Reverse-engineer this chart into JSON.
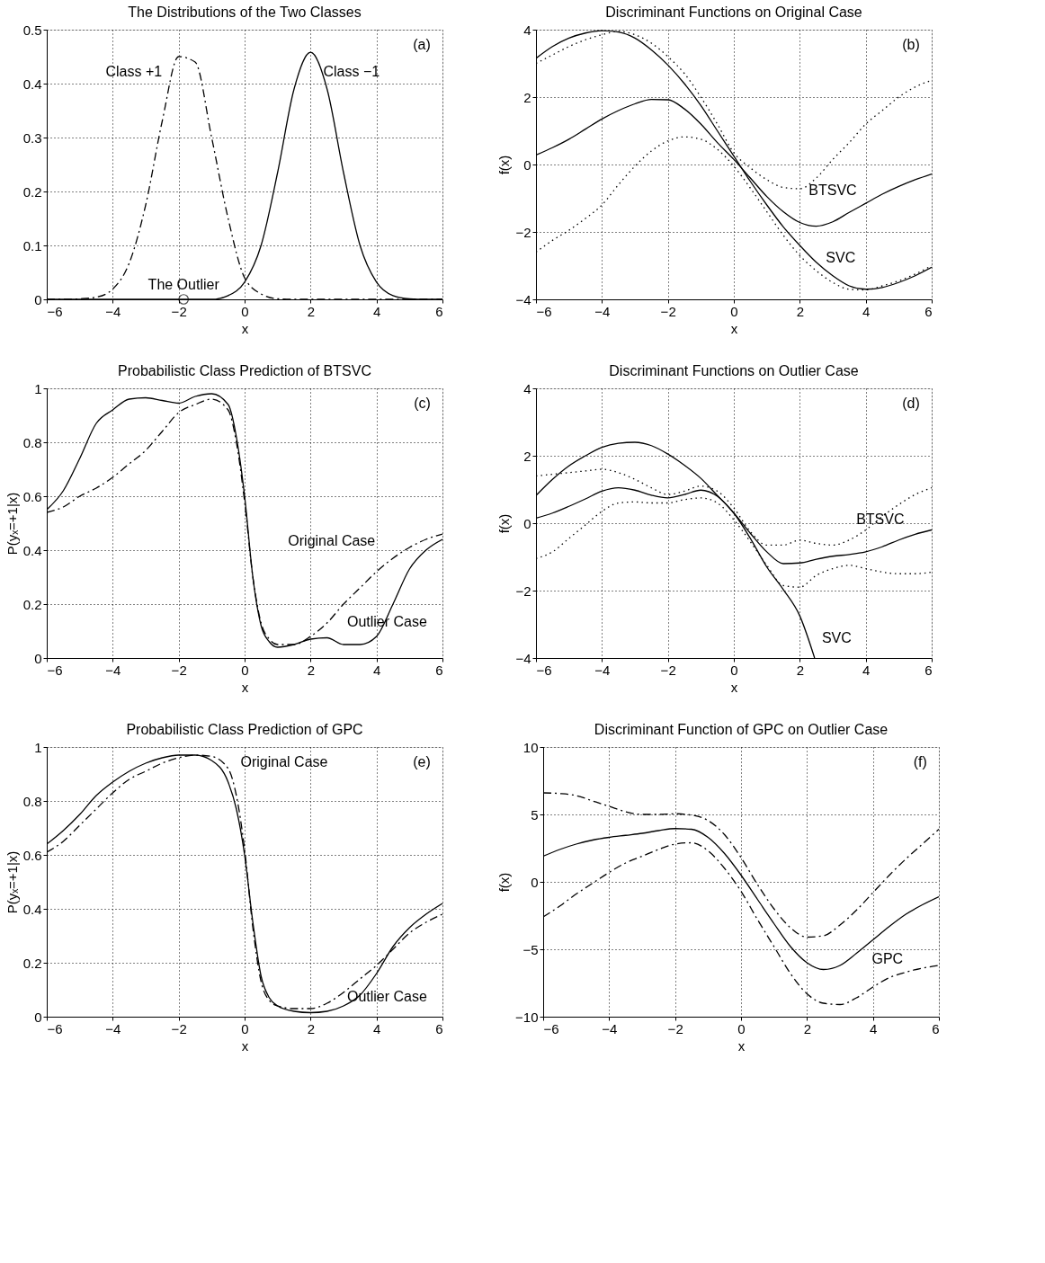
{
  "chart_data": [
    {
      "type": "line",
      "title": "The Distributions of the Two Classes",
      "xlabel": "x",
      "xlim": [
        -6,
        6
      ],
      "ylim": [
        0,
        0.5
      ],
      "xticks": [
        -6,
        -4,
        -2,
        0,
        2,
        4,
        6
      ],
      "yticks": [
        0,
        0.1,
        0.2,
        0.3,
        0.4,
        0.5
      ],
      "grid": true,
      "x": [
        -6,
        -5.5,
        -5,
        -4.5,
        -4,
        -3.5,
        -3,
        -2.5,
        -2,
        -1.5,
        -1,
        -0.5,
        0,
        0.5,
        1,
        1.5,
        2,
        2.5,
        3,
        3.5,
        4,
        4.5,
        5,
        5.5,
        6
      ],
      "series": [
        {
          "color": "#000000",
          "line_style": "dashed",
          "values": [
            0,
            0,
            0.001,
            0.004,
            0.019,
            0.067,
            0.175,
            0.33,
            0.45,
            0.44,
            0.3,
            0.15,
            0.04,
            0.01,
            0.001,
            0,
            0,
            0,
            0,
            0,
            0,
            0,
            0,
            0,
            0
          ]
        },
        {
          "color": "#000000",
          "line_style": "solid",
          "values": [
            0,
            0,
            0,
            0,
            0,
            0,
            0,
            0,
            0,
            0,
            0,
            0.007,
            0.032,
            0.1,
            0.235,
            0.39,
            0.458,
            0.39,
            0.235,
            0.1,
            0.032,
            0.007,
            0.001,
            0,
            0
          ]
        },
        {
          "type": "scatter",
          "marker": "circle",
          "color": "#000000",
          "x": [
            -1.85
          ],
          "values": [
            0
          ]
        }
      ],
      "annotations": [
        "(a)",
        "Class +1",
        "Class −1",
        {
          "text": "The Outlier",
          "x": -1.85,
          "y": 0
        }
      ]
    },
    {
      "type": "line",
      "title": "Discriminant Functions on Original Case",
      "xlabel": "x",
      "ylabel": "f(x)",
      "xlim": [
        -6,
        6
      ],
      "ylim": [
        -4,
        4
      ],
      "xticks": [
        -6,
        -4,
        -2,
        0,
        2,
        4,
        6
      ],
      "yticks": [
        -4,
        -2,
        0,
        2,
        4
      ],
      "grid": true,
      "x": [
        -6,
        -5.5,
        -5,
        -4.5,
        -4,
        -3.5,
        -3,
        -2.5,
        -2,
        -1.5,
        -1,
        -0.5,
        0,
        0.5,
        1,
        1.5,
        2,
        2.5,
        3,
        3.5,
        4,
        4.5,
        5,
        5.5,
        6
      ],
      "series": [
        {
          "color": "#000000",
          "line_style": "solid",
          "values": [
            3.15,
            3.5,
            3.75,
            3.9,
            3.97,
            3.93,
            3.75,
            3.4,
            2.95,
            2.4,
            1.75,
            1.0,
            0.25,
            -0.5,
            -1.2,
            -1.85,
            -2.4,
            -2.9,
            -3.3,
            -3.6,
            -3.7,
            -3.65,
            -3.5,
            -3.3,
            -3.05
          ]
        },
        {
          "color": "#000000",
          "line_style": "solid",
          "values": [
            0.28,
            0.5,
            0.75,
            1.05,
            1.35,
            1.6,
            1.8,
            1.93,
            1.92,
            1.65,
            1.2,
            0.65,
            0.15,
            -0.4,
            -0.95,
            -1.4,
            -1.72,
            -1.83,
            -1.7,
            -1.42,
            -1.15,
            -0.88,
            -0.65,
            -0.45,
            -0.28
          ]
        },
        {
          "color": "#000000",
          "line_style": "dotted",
          "values": [
            3.0,
            3.25,
            3.5,
            3.7,
            3.85,
            3.95,
            3.85,
            3.6,
            3.2,
            2.7,
            2.0,
            1.2,
            0.35,
            -0.1,
            -0.45,
            -0.68,
            -0.72,
            -0.4,
            0.15,
            0.65,
            1.2,
            1.6,
            2.0,
            2.3,
            2.5
          ]
        },
        {
          "color": "#000000",
          "line_style": "dotted",
          "values": [
            -2.6,
            -2.25,
            -1.95,
            -1.6,
            -1.2,
            -0.6,
            -0.05,
            0.4,
            0.7,
            0.82,
            0.75,
            0.45,
            -0.05,
            -0.7,
            -1.4,
            -2.1,
            -2.7,
            -3.15,
            -3.5,
            -3.7,
            -3.72,
            -3.6,
            -3.45,
            -3.25,
            -3.0
          ]
        }
      ],
      "annotations": [
        "(b)",
        "BTSVC",
        "SVC"
      ]
    },
    {
      "type": "line",
      "title": "Probabilistic Class Prediction of BTSVC",
      "xlabel": "x",
      "ylabel": "P(yₓ=+1|x)",
      "xlim": [
        -6,
        6
      ],
      "ylim": [
        0,
        1
      ],
      "xticks": [
        -6,
        -4,
        -2,
        0,
        2,
        4,
        6
      ],
      "yticks": [
        0,
        0.2,
        0.4,
        0.6,
        0.8,
        1
      ],
      "grid": true,
      "x": [
        -6,
        -5.5,
        -5,
        -4.5,
        -4,
        -3.5,
        -3,
        -2.5,
        -2,
        -1.5,
        -1,
        -0.5,
        -0.25,
        0,
        0.25,
        0.5,
        0.75,
        1,
        1.5,
        2,
        2.5,
        3,
        3.5,
        4,
        4.5,
        5,
        5.5,
        6
      ],
      "series": [
        {
          "color": "#000000",
          "line_style": "solid",
          "values": [
            0.55,
            0.62,
            0.74,
            0.87,
            0.92,
            0.96,
            0.965,
            0.955,
            0.945,
            0.97,
            0.98,
            0.94,
            0.82,
            0.6,
            0.3,
            0.12,
            0.06,
            0.04,
            0.05,
            0.07,
            0.075,
            0.05,
            0.05,
            0.08,
            0.2,
            0.33,
            0.4,
            0.44
          ]
        },
        {
          "color": "#000000",
          "line_style": "dashed",
          "values": [
            0.54,
            0.56,
            0.6,
            0.63,
            0.67,
            0.72,
            0.77,
            0.84,
            0.91,
            0.94,
            0.96,
            0.92,
            0.8,
            0.58,
            0.3,
            0.13,
            0.07,
            0.05,
            0.05,
            0.08,
            0.13,
            0.2,
            0.26,
            0.32,
            0.37,
            0.41,
            0.44,
            0.46
          ]
        }
      ],
      "annotations": [
        "(c)",
        "Original Case",
        "Outlier Case"
      ]
    },
    {
      "type": "line",
      "title": "Discriminant Functions on Outlier Case",
      "xlabel": "x",
      "ylabel": "f(x)",
      "xlim": [
        -6,
        6
      ],
      "ylim": [
        -4,
        4
      ],
      "xticks": [
        -6,
        -4,
        -2,
        0,
        2,
        4,
        6
      ],
      "yticks": [
        -4,
        -2,
        0,
        2,
        4
      ],
      "grid": true,
      "x": [
        -6,
        -5.5,
        -5,
        -4.5,
        -4,
        -3.5,
        -3,
        -2.5,
        -2,
        -1.5,
        -1,
        -0.5,
        0,
        0.5,
        1,
        1.5,
        2,
        2.5,
        3,
        3.5,
        4,
        4.5,
        5,
        5.5,
        6
      ],
      "series": [
        {
          "color": "#000000",
          "line_style": "solid",
          "x": [
            -6,
            -5.5,
            -5,
            -4.5,
            -4,
            -3.5,
            -3,
            -2.5,
            -2,
            -1.5,
            -1,
            -0.5,
            0,
            0.5,
            1,
            1.5,
            2,
            2.45
          ],
          "values": [
            0.82,
            1.3,
            1.7,
            2.0,
            2.25,
            2.37,
            2.4,
            2.3,
            2.05,
            1.72,
            1.33,
            0.82,
            0.3,
            -0.45,
            -1.3,
            -1.97,
            -2.75,
            -4.0
          ]
        },
        {
          "color": "#000000",
          "line_style": "solid",
          "values": [
            0.15,
            0.3,
            0.5,
            0.72,
            0.95,
            1.05,
            0.98,
            0.83,
            0.75,
            0.85,
            0.98,
            0.8,
            0.3,
            -0.3,
            -0.85,
            -1.2,
            -1.18,
            -1.07,
            -0.98,
            -0.93,
            -0.85,
            -0.7,
            -0.5,
            -0.33,
            -0.2
          ]
        },
        {
          "color": "#000000",
          "line_style": "dotted",
          "values": [
            1.4,
            1.45,
            1.5,
            1.55,
            1.6,
            1.5,
            1.3,
            1.05,
            0.85,
            0.95,
            1.1,
            0.95,
            0.45,
            -0.25,
            -0.65,
            -0.65,
            -0.5,
            -0.6,
            -0.65,
            -0.5,
            -0.2,
            0.2,
            0.55,
            0.85,
            1.05
          ]
        },
        {
          "color": "#000000",
          "line_style": "dotted",
          "values": [
            -1.05,
            -0.85,
            -0.45,
            -0.05,
            0.35,
            0.6,
            0.63,
            0.6,
            0.6,
            0.7,
            0.75,
            0.6,
            0.1,
            -0.55,
            -1.25,
            -1.85,
            -1.9,
            -1.55,
            -1.35,
            -1.25,
            -1.35,
            -1.45,
            -1.5,
            -1.5,
            -1.45
          ]
        }
      ],
      "annotations": [
        "(d)",
        "BTSVC",
        "SVC"
      ]
    },
    {
      "type": "line",
      "title": "Probabilistic Class Prediction of GPC",
      "xlabel": "x",
      "ylabel": "P(yₓ=+1|x)",
      "xlim": [
        -6,
        6
      ],
      "ylim": [
        0,
        1
      ],
      "xticks": [
        -6,
        -4,
        -2,
        0,
        2,
        4,
        6
      ],
      "yticks": [
        0,
        0.2,
        0.4,
        0.6,
        0.8,
        1
      ],
      "grid": true,
      "x": [
        -6,
        -5.5,
        -5,
        -4.5,
        -4,
        -3.5,
        -3,
        -2.5,
        -2,
        -1.5,
        -1,
        -0.5,
        -0.25,
        0,
        0.25,
        0.5,
        0.75,
        1,
        1.5,
        2,
        2.5,
        3,
        3.5,
        4,
        4.5,
        5,
        5.5,
        6
      ],
      "series": [
        {
          "color": "#000000",
          "line_style": "solid",
          "values": [
            0.64,
            0.69,
            0.75,
            0.82,
            0.87,
            0.91,
            0.94,
            0.96,
            0.97,
            0.97,
            0.95,
            0.87,
            0.77,
            0.6,
            0.35,
            0.15,
            0.07,
            0.04,
            0.02,
            0.015,
            0.02,
            0.04,
            0.08,
            0.16,
            0.26,
            0.33,
            0.38,
            0.42
          ]
        },
        {
          "color": "#000000",
          "line_style": "dashed",
          "values": [
            0.61,
            0.65,
            0.71,
            0.77,
            0.83,
            0.88,
            0.91,
            0.94,
            0.96,
            0.97,
            0.965,
            0.92,
            0.82,
            0.62,
            0.33,
            0.13,
            0.06,
            0.04,
            0.03,
            0.03,
            0.05,
            0.09,
            0.14,
            0.19,
            0.25,
            0.31,
            0.35,
            0.38
          ]
        }
      ],
      "annotations": [
        "(e)",
        "Original Case",
        "Outlier Case"
      ]
    },
    {
      "type": "line",
      "title": "Discriminant Function of GPC on Outlier Case",
      "xlabel": "x",
      "ylabel": "f(x)",
      "xlim": [
        -6,
        6
      ],
      "ylim": [
        -10,
        10
      ],
      "xticks": [
        -6,
        -4,
        -2,
        0,
        2,
        4,
        6
      ],
      "yticks": [
        -10,
        -5,
        0,
        5,
        10
      ],
      "grid": true,
      "x": [
        -6,
        -5.5,
        -5,
        -4.5,
        -4,
        -3.5,
        -3,
        -2.5,
        -2,
        -1.5,
        -1,
        -0.5,
        0,
        0.5,
        1,
        1.5,
        2,
        2.5,
        3,
        3.5,
        4,
        4.5,
        5,
        5.5,
        6
      ],
      "series": [
        {
          "color": "#000000",
          "line_style": "solid",
          "values": [
            1.9,
            2.4,
            2.8,
            3.1,
            3.3,
            3.45,
            3.6,
            3.8,
            3.95,
            3.9,
            3.3,
            2.1,
            0.5,
            -1.3,
            -3.1,
            -4.8,
            -6.0,
            -6.5,
            -6.2,
            -5.3,
            -4.3,
            -3.3,
            -2.4,
            -1.7,
            -1.1
          ]
        },
        {
          "color": "#000000",
          "line_style": "dashed",
          "values": [
            6.6,
            6.55,
            6.4,
            6.0,
            5.6,
            5.2,
            5.0,
            5.0,
            5.05,
            4.95,
            4.55,
            3.5,
            1.8,
            -0.2,
            -2.0,
            -3.4,
            -4.1,
            -4.0,
            -3.2,
            -2.1,
            -0.8,
            0.5,
            1.7,
            2.8,
            3.9
          ]
        },
        {
          "color": "#000000",
          "line_style": "dashed",
          "values": [
            -2.6,
            -1.8,
            -0.9,
            -0.1,
            0.7,
            1.4,
            1.9,
            2.4,
            2.8,
            2.9,
            2.3,
            1.0,
            -0.7,
            -2.8,
            -4.8,
            -6.8,
            -8.3,
            -9.0,
            -9.1,
            -8.6,
            -7.8,
            -7.1,
            -6.7,
            -6.4,
            -6.2
          ]
        }
      ],
      "annotations": [
        "(f)",
        "GPC"
      ]
    }
  ]
}
